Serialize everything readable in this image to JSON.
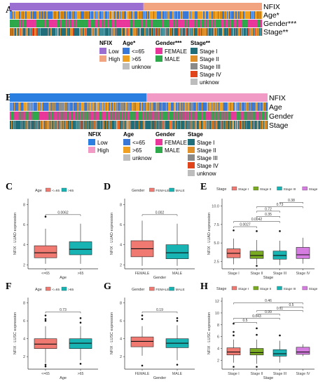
{
  "panels": {
    "A": "A",
    "B": "B",
    "C": "C",
    "D": "D",
    "E": "E",
    "F": "F",
    "G": "G",
    "H": "H"
  },
  "colors": {
    "low": "#9b6fd1",
    "high": "#f2a481",
    "age_le65": "#3a78d8",
    "age_gt65": "#f0a020",
    "unknown": "#bdbdbd",
    "female": "#e8369a",
    "male": "#2ea84a",
    "stage1": "#1f6e7a",
    "stage2": "#e0902a",
    "stage3": "#8a8a8a",
    "stage4": "#e0441a",
    "nfix_low_b": "#2a7ee0",
    "nfix_high_b": "#f29ac6",
    "box_red": "#f07a72",
    "box_teal": "#18b3b3",
    "box_green": "#7aaa22",
    "box_purple": "#d57ce0"
  },
  "heatmap_A": {
    "row_labels": [
      "NFIX",
      "Age*",
      "Gender***",
      "Stage**"
    ],
    "legend": {
      "nfix": {
        "title": "NFIX",
        "items": [
          "Low",
          "High"
        ]
      },
      "age": {
        "title": "Age*",
        "items": [
          "<=65",
          ">65",
          "unknow"
        ]
      },
      "gender": {
        "title": "Gender***",
        "items": [
          "FEMALE",
          "MALE"
        ]
      },
      "stage": {
        "title": "Stage**",
        "items": [
          "Stage I",
          "Stage II",
          "Stage III",
          "Stage IV",
          "unknow"
        ]
      }
    }
  },
  "heatmap_B": {
    "row_labels": [
      "NFIX",
      "Age",
      "Gender",
      "Stage"
    ],
    "legend": {
      "nfix": {
        "title": "NFIX",
        "items": [
          "Low",
          "High"
        ]
      },
      "age": {
        "title": "Age",
        "items": [
          "<=65",
          ">65",
          "unknow"
        ]
      },
      "gender": {
        "title": "Gender",
        "items": [
          "FEMALE",
          "MALE"
        ]
      },
      "stage": {
        "title": "Stage",
        "items": [
          "Stage I",
          "Stage II",
          "Stage III",
          "Stage IV",
          "unknow"
        ]
      }
    }
  },
  "chart_data": [
    {
      "panel": "C",
      "type": "box",
      "legend_title": "Age",
      "legend_items": [
        "<=65",
        ">65"
      ],
      "categories": [
        "<=65",
        ">65"
      ],
      "xlabel": "Age",
      "ylabel": "NFIX · LUAD expression",
      "yticks": [
        2,
        4,
        6,
        8
      ],
      "ylim": [
        1.6,
        8.6
      ],
      "boxes": [
        {
          "min": 2.1,
          "q1": 2.7,
          "median": 3.2,
          "q3": 3.9,
          "max": 5.6,
          "outliers": [
            6.8
          ]
        },
        {
          "min": 2.1,
          "q1": 3.0,
          "median": 3.55,
          "q3": 4.3,
          "max": 6.1,
          "outliers": []
        }
      ],
      "comparisons": [
        {
          "from": 0,
          "to": 1,
          "label": "0.0062",
          "y": 7.0
        }
      ]
    },
    {
      "panel": "D",
      "type": "box",
      "legend_title": "Gender",
      "legend_items": [
        "FEMALE",
        "MALE"
      ],
      "categories": [
        "FEMALE",
        "MALE"
      ],
      "xlabel": "Gender",
      "ylabel": "NFIX · LUAD expression",
      "yticks": [
        2,
        4,
        6,
        8
      ],
      "ylim": [
        1.6,
        8.6
      ],
      "boxes": [
        {
          "min": 1.9,
          "q1": 2.8,
          "median": 3.6,
          "q3": 4.4,
          "max": 6.4,
          "outliers": []
        },
        {
          "min": 1.9,
          "q1": 2.6,
          "median": 3.2,
          "q3": 4.0,
          "max": 6.1,
          "outliers": []
        }
      ],
      "comparisons": [
        {
          "from": 0,
          "to": 1,
          "label": "0.002",
          "y": 7.0
        }
      ]
    },
    {
      "panel": "E",
      "type": "box",
      "legend_title": "Stage",
      "legend_items": [
        "Stage I",
        "Stage II",
        "Stage III",
        "Stage IV"
      ],
      "categories": [
        "Stage I",
        "Stage II",
        "Stage III",
        "Stage IV"
      ],
      "xlabel": "Stage",
      "ylabel": "NFIX · LUAD expression",
      "yticks": [
        2.5,
        5.0,
        7.5,
        10.0
      ],
      "ylim": [
        1.5,
        11.0
      ],
      "boxes": [
        {
          "min": 2.1,
          "q1": 3.0,
          "median": 3.6,
          "q3": 4.2,
          "max": 5.6,
          "outliers": [
            6.7
          ]
        },
        {
          "min": 2.1,
          "q1": 2.9,
          "median": 3.3,
          "q3": 3.9,
          "max": 5.4,
          "outliers": [
            1.9,
            6.6
          ]
        },
        {
          "min": 2.0,
          "q1": 2.8,
          "median": 3.3,
          "q3": 3.9,
          "max": 5.3,
          "outliers": [
            6.6
          ]
        },
        {
          "min": 2.2,
          "q1": 2.9,
          "median": 3.4,
          "q3": 4.4,
          "max": 5.7,
          "outliers": []
        }
      ],
      "comparisons": [
        {
          "from": 0,
          "to": 1,
          "label": "0.0027",
          "y": 7.2
        },
        {
          "from": 0,
          "to": 2,
          "label": "0.0042",
          "y": 7.9
        },
        {
          "from": 1,
          "to": 2,
          "label": "0.35",
          "y": 8.6
        },
        {
          "from": 1,
          "to": 2,
          "label": "0.72",
          "y": 9.3
        },
        {
          "from": 1,
          "to": 3,
          "label": "0.73",
          "y": 9.9
        },
        {
          "from": 2,
          "to": 3,
          "label": "0.38",
          "y": 10.5
        }
      ]
    },
    {
      "panel": "F",
      "type": "box",
      "legend_title": "Age",
      "legend_items": [
        "<=65",
        ">65"
      ],
      "categories": [
        "<=65",
        ">65"
      ],
      "xlabel": "Age",
      "ylabel": "NFIX · LUSC expression",
      "yticks": [
        2,
        4,
        6,
        8
      ],
      "ylim": [
        0.6,
        8.6
      ],
      "boxes": [
        {
          "min": 1.3,
          "q1": 2.9,
          "median": 3.4,
          "q3": 4.0,
          "max": 5.4,
          "outliers": [
            0.9,
            1.1,
            6.0,
            6.2,
            6.6
          ]
        },
        {
          "min": 1.6,
          "q1": 2.9,
          "median": 3.5,
          "q3": 4.0,
          "max": 5.4,
          "outliers": [
            1.2,
            5.8,
            6.3
          ]
        }
      ],
      "comparisons": [
        {
          "from": 0,
          "to": 1,
          "label": "0.73",
          "y": 7.0
        }
      ]
    },
    {
      "panel": "G",
      "type": "box",
      "legend_title": "Gender",
      "legend_items": [
        "FEMALE",
        "MALE"
      ],
      "categories": [
        "FEMALE",
        "MALE"
      ],
      "xlabel": "Gender",
      "ylabel": "NFIX · LUSC expression",
      "yticks": [
        2,
        4,
        6,
        8
      ],
      "ylim": [
        0.6,
        8.6
      ],
      "boxes": [
        {
          "min": 2.1,
          "q1": 3.1,
          "median": 3.7,
          "q3": 4.2,
          "max": 5.4,
          "outliers": [
            1.0,
            6.2,
            6.6
          ]
        },
        {
          "min": 1.6,
          "q1": 3.0,
          "median": 3.5,
          "q3": 4.0,
          "max": 5.5,
          "outliers": [
            1.1,
            6.0,
            6.3
          ]
        }
      ],
      "comparisons": [
        {
          "from": 0,
          "to": 1,
          "label": "0.19",
          "y": 7.0
        }
      ]
    },
    {
      "panel": "H",
      "type": "box",
      "legend_title": "Stage",
      "legend_items": [
        "Stage I",
        "Stage II",
        "Stage III",
        "Stage IV"
      ],
      "categories": [
        "Stage I",
        "Stage II",
        "Stage III",
        "Stage IV"
      ],
      "xlabel": "Stage",
      "ylabel": "NFIX · LUSC expression",
      "yticks": [
        2,
        4,
        6,
        8,
        10,
        12
      ],
      "ylim": [
        0.5,
        12.6
      ],
      "boxes": [
        {
          "min": 1.6,
          "q1": 2.9,
          "median": 3.4,
          "q3": 4.1,
          "max": 5.5,
          "outliers": [
            0.9,
            6.2,
            6.8,
            8.2
          ]
        },
        {
          "min": 1.4,
          "q1": 2.9,
          "median": 3.3,
          "q3": 4.0,
          "max": 5.5,
          "outliers": [
            0.9,
            6.3,
            7.4
          ]
        },
        {
          "min": 1.6,
          "q1": 2.7,
          "median": 3.1,
          "q3": 3.8,
          "max": 5.3,
          "outliers": [
            6.2
          ]
        },
        {
          "min": 2.7,
          "q1": 3.0,
          "median": 3.4,
          "q3": 4.2,
          "max": 4.7,
          "outliers": []
        }
      ],
      "comparisons": [
        {
          "from": 0,
          "to": 1,
          "label": "0.5",
          "y": 8.4
        },
        {
          "from": 0,
          "to": 2,
          "label": "0.043",
          "y": 9.1
        },
        {
          "from": 1,
          "to": 2,
          "label": "0.99",
          "y": 9.8
        },
        {
          "from": 1,
          "to": 3,
          "label": "0.11",
          "y": 10.4
        },
        {
          "from": 2,
          "to": 3,
          "label": "0.5",
          "y": 11.0
        },
        {
          "from": 0,
          "to": 3,
          "label": "0.46",
          "y": 11.7
        }
      ]
    }
  ]
}
